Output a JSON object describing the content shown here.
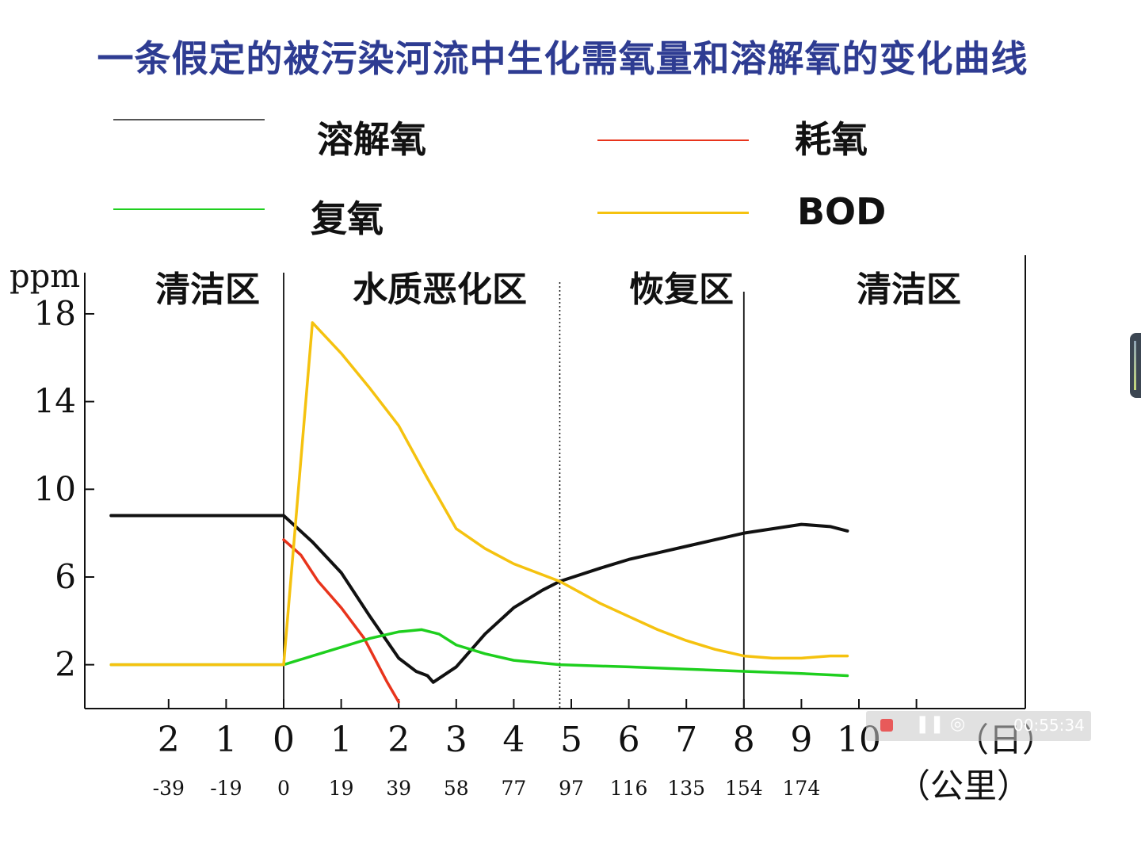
{
  "title": "一条假定的被污染河流中生化需氧量和溶解氧的变化曲线",
  "legend": [
    {
      "key": "do",
      "label": "溶解氧",
      "color": "#111111"
    },
    {
      "key": "consumption",
      "label": "耗氧",
      "color": "#e8341c"
    },
    {
      "key": "reaeration",
      "label": "复氧",
      "color": "#1ecf1e"
    },
    {
      "key": "bod",
      "label": "BOD",
      "color": "#f5c20f"
    }
  ],
  "chart_data": {
    "type": "line",
    "title": "一条假定的被污染河流中生化需氧量和溶解氧的变化曲线",
    "ylabel": "ppm",
    "ylim": [
      0,
      20
    ],
    "yticks": [
      "2",
      "6",
      "10",
      "14",
      "18"
    ],
    "ytick_values": [
      2,
      6,
      10,
      14,
      18
    ],
    "xlim": [
      -3,
      13
    ],
    "xlabel": "（日）",
    "xlabel2": "（公里）",
    "day_ticks": [
      {
        "x": -2,
        "label": "2"
      },
      {
        "x": -1,
        "label": "1"
      },
      {
        "x": 0,
        "label": "0"
      },
      {
        "x": 1,
        "label": "1"
      },
      {
        "x": 2,
        "label": "2"
      },
      {
        "x": 3,
        "label": "3"
      },
      {
        "x": 4,
        "label": "4"
      },
      {
        "x": 5,
        "label": "5"
      },
      {
        "x": 6,
        "label": "6"
      },
      {
        "x": 7,
        "label": "7"
      },
      {
        "x": 8,
        "label": "8"
      },
      {
        "x": 9,
        "label": "9"
      },
      {
        "x": 10,
        "label": "10"
      },
      {
        "x": 11,
        "label": ""
      }
    ],
    "km_ticks": [
      {
        "x": -2,
        "label": "-39"
      },
      {
        "x": -1,
        "label": "-19"
      },
      {
        "x": 0,
        "label": "0"
      },
      {
        "x": 1,
        "label": "19"
      },
      {
        "x": 2,
        "label": "39"
      },
      {
        "x": 3,
        "label": "58"
      },
      {
        "x": 4,
        "label": "77"
      },
      {
        "x": 5,
        "label": "97"
      },
      {
        "x": 6,
        "label": "116"
      },
      {
        "x": 7,
        "label": "135"
      },
      {
        "x": 8,
        "label": "154"
      },
      {
        "x": 9,
        "label": "174"
      }
    ],
    "zones": [
      {
        "label": "清洁区",
        "x_start": -3,
        "x_end": 0
      },
      {
        "label": "水质恶化区",
        "x_start": 0,
        "x_end": 4.8
      },
      {
        "label": "恢复区",
        "x_start": 4.8,
        "x_end": 8
      },
      {
        "label": "清洁区",
        "x_start": 8,
        "x_end": 13
      }
    ],
    "boundaries": [
      {
        "x": 0,
        "style": "solid"
      },
      {
        "x": 4.8,
        "style": "dotted"
      },
      {
        "x": 8,
        "style": "solid"
      }
    ],
    "series": [
      {
        "name": "溶解氧",
        "color": "#111111",
        "x": [
          -3,
          0,
          0.5,
          1,
          1.5,
          2,
          2.3,
          2.5,
          2.6,
          3,
          3.5,
          4,
          4.5,
          4.8,
          5.5,
          6,
          6.5,
          7,
          7.5,
          8,
          8.5,
          9,
          9.5,
          9.8
        ],
        "y": [
          8.8,
          8.8,
          7.6,
          6.2,
          4.2,
          2.3,
          1.7,
          1.5,
          1.2,
          1.9,
          3.4,
          4.6,
          5.4,
          5.8,
          6.4,
          6.8,
          7.1,
          7.4,
          7.7,
          8.0,
          8.2,
          8.4,
          8.3,
          8.1
        ]
      },
      {
        "name": "耗氧",
        "color": "#e8341c",
        "x": [
          0,
          0.3,
          0.6,
          1,
          1.4,
          1.8,
          2.0
        ],
        "y": [
          7.7,
          7.0,
          5.8,
          4.6,
          3.2,
          1.2,
          0.3
        ]
      },
      {
        "name": "复氧",
        "color": "#1ecf1e",
        "x": [
          -3,
          0,
          0.5,
          1,
          1.5,
          2,
          2.4,
          2.7,
          3,
          3.5,
          4,
          4.8,
          6,
          7,
          8,
          9,
          9.8
        ],
        "y": [
          2.0,
          2.0,
          2.4,
          2.8,
          3.2,
          3.5,
          3.6,
          3.4,
          2.9,
          2.5,
          2.2,
          2.0,
          1.9,
          1.8,
          1.7,
          1.6,
          1.5
        ]
      },
      {
        "name": "BOD",
        "color": "#f5c20f",
        "x": [
          -3,
          0,
          0.5,
          1,
          1.5,
          2,
          2.5,
          3,
          3.5,
          4,
          4.8,
          5.5,
          6,
          6.5,
          7,
          7.5,
          8,
          8.5,
          9,
          9.5,
          9.8
        ],
        "y": [
          2.0,
          2.0,
          17.6,
          16.2,
          14.6,
          12.9,
          10.5,
          8.2,
          7.3,
          6.6,
          5.8,
          4.8,
          4.2,
          3.6,
          3.1,
          2.7,
          2.4,
          2.3,
          2.3,
          2.4,
          2.4
        ]
      }
    ]
  },
  "recorder": {
    "time": "00:55:34",
    "pause_icon": "pause-icon",
    "camera_icon": "camera-icon"
  }
}
